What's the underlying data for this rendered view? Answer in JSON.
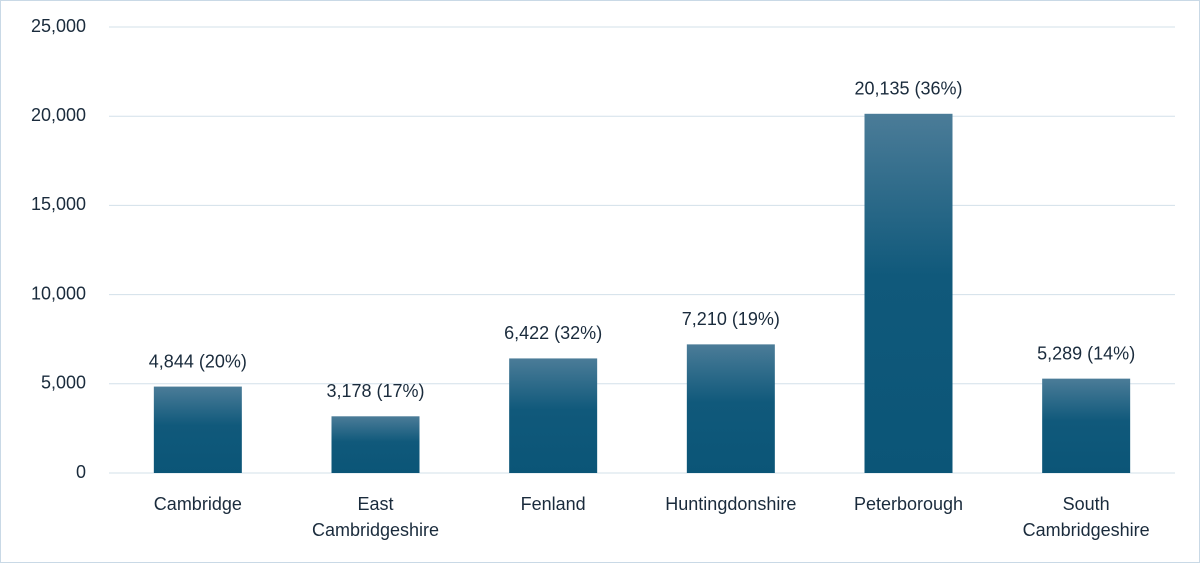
{
  "chart_data": {
    "type": "bar",
    "categories": [
      "Cambridge",
      "East Cambridgeshire",
      "Fenland",
      "Huntingdonshire",
      "Peterborough",
      "South Cambridgeshire"
    ],
    "values": [
      4844,
      3178,
      6422,
      7210,
      20135,
      5289
    ],
    "value_labels": [
      "4,844 (20%)",
      "3,178 (17%)",
      "6,422 (32%)",
      "7,210 (19%)",
      "20,135 (36%)",
      "5,289 (14%)"
    ],
    "color": "#0f5a7c",
    "ylim": [
      0,
      25000
    ],
    "yticks": [
      0,
      {
        "value": 5000,
        "label": "5,000"
      },
      {
        "value": 10000,
        "label": "10,000"
      },
      {
        "value": 15000,
        "label": "15,000"
      },
      {
        "value": 20000,
        "label": "20,000"
      },
      {
        "value": 25000,
        "label": "25,000"
      }
    ],
    "grid": true
  }
}
